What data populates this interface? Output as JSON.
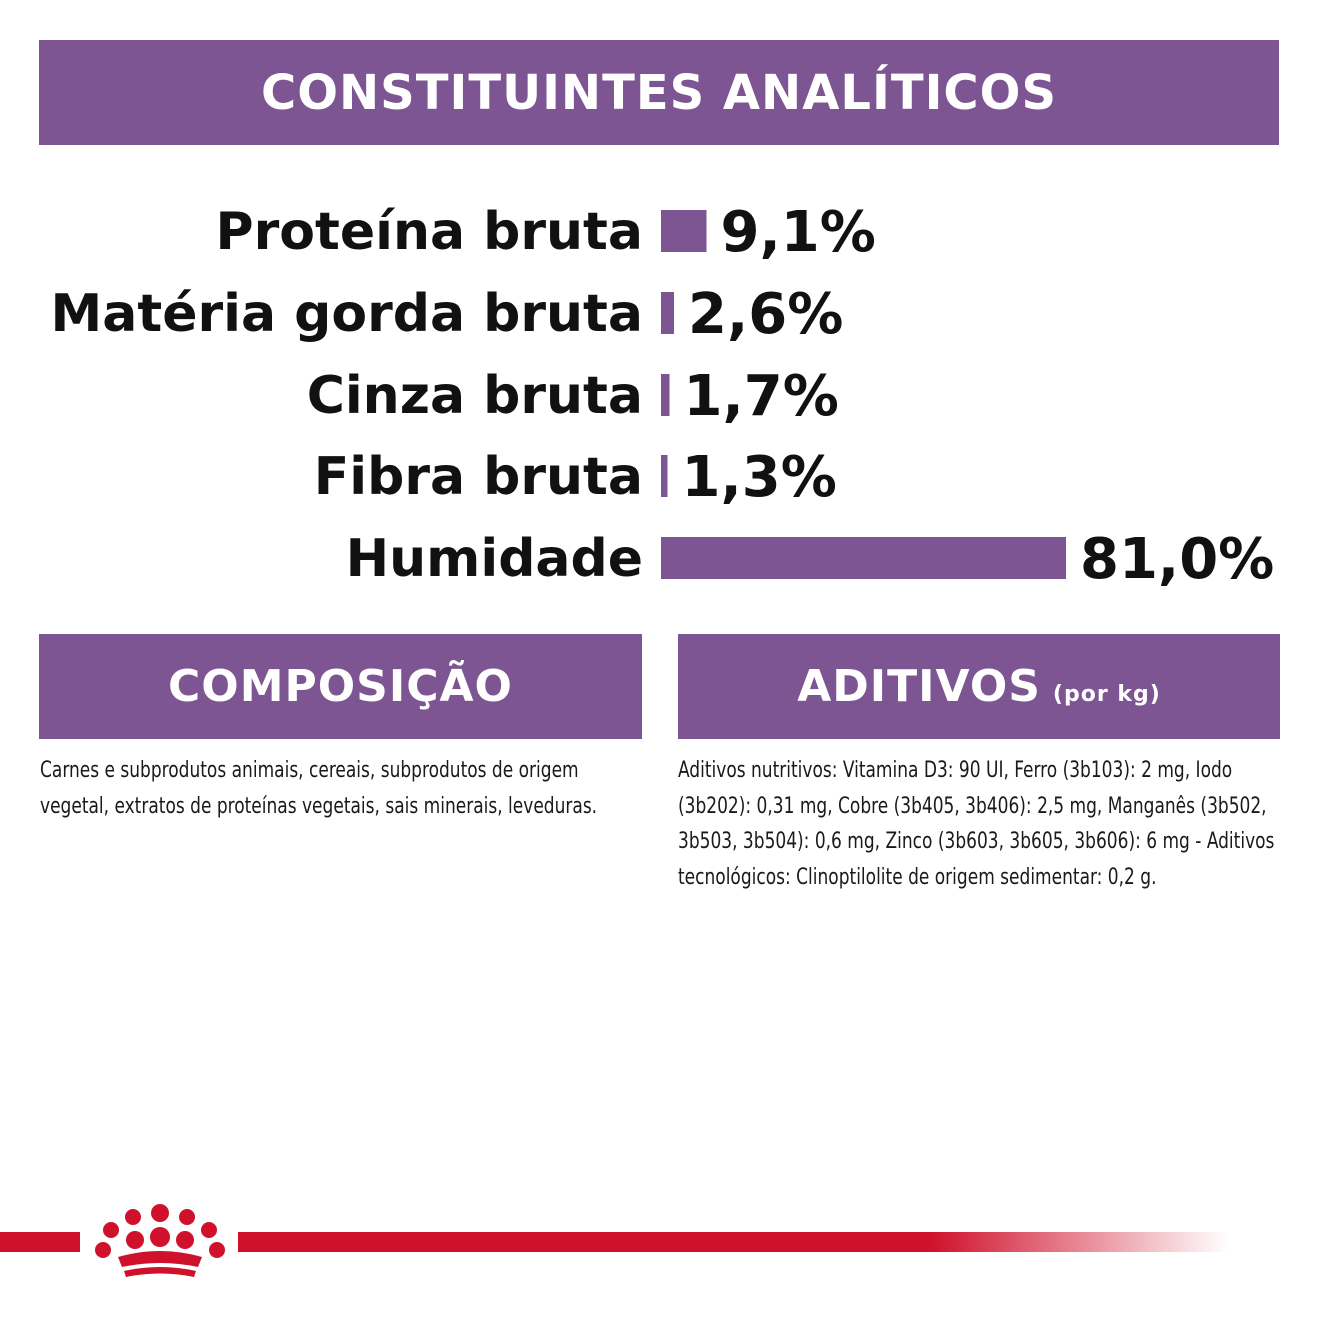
{
  "analytical": {
    "title": "CONSTITUINTES ANALÍTICOS"
  },
  "chart_data": {
    "type": "bar",
    "orientation": "horizontal",
    "categories": [
      "Proteína bruta",
      "Matéria gorda bruta",
      "Cinza bruta",
      "Fibra bruta",
      "Humidade"
    ],
    "values": [
      9.1,
      2.6,
      1.7,
      1.3,
      81.0
    ],
    "value_labels": [
      "9,1%",
      "2,6%",
      "1,7%",
      "1,3%",
      "81,0%"
    ],
    "unit": "%",
    "bar_color": "#7d5593",
    "xlim": [
      0,
      81.0
    ],
    "grid": false
  },
  "composition": {
    "title": "COMPOSIÇÃO",
    "text": "Carnes e subprodutos animais, cereais, subprodutos de origem vegetal, extratos de proteínas vegetais, sais minerais, leveduras."
  },
  "additives": {
    "title": "ADITIVOS",
    "subtitle": "(por kg)",
    "text": "Aditivos nutritivos: Vitamina D3: 90 UI, Ferro (3b103): 2 mg, Iodo (3b202): 0,31 mg, Cobre (3b405, 3b406): 2,5 mg, Manganês (3b502, 3b503, 3b504): 0,6 mg, Zinco (3b603, 3b605, 3b606): 6 mg - Aditivos tecnológicos: Clinoptilolite de origem sedimentar: 0,2 g."
  },
  "colors": {
    "accent": "#7d5593",
    "brand_red": "#d0112b"
  },
  "icons": {
    "brand_logo": "crown-logo-icon"
  }
}
